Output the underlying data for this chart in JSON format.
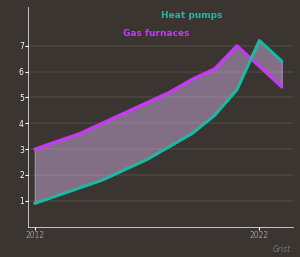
{
  "background_color": "#3a3530",
  "plot_bg_color": "#3a3530",
  "teal_color": "#1db8a0",
  "purple_color": "#cc33ff",
  "fill_color": "#ddb8ee",
  "fill_alpha": 0.45,
  "line_width": 2.2,
  "heat_pumps_label": "Heat pumps",
  "gas_furnaces_label": "Gas furnaces",
  "label_color_teal": "#1db8a0",
  "label_color_purple": "#cc33ff",
  "grist_label": "Grist",
  "grid_color": "#ffffff",
  "tick_color": "#ffffff",
  "axis_label_color": "#999999",
  "years": [
    2012,
    2013,
    2014,
    2015,
    2016,
    2017,
    2018,
    2019,
    2020,
    2021,
    2022,
    2023
  ],
  "heat_pumps": [
    0.9,
    1.2,
    1.5,
    1.8,
    2.2,
    2.6,
    3.1,
    3.6,
    4.3,
    5.3,
    7.2,
    6.4
  ],
  "gas_furnaces": [
    3.0,
    3.3,
    3.6,
    4.0,
    4.4,
    4.8,
    5.2,
    5.7,
    6.1,
    7.0,
    6.2,
    5.4
  ],
  "ylim": [
    0,
    8.5
  ],
  "ytick_positions": [
    1,
    2,
    3,
    4,
    5,
    6,
    7
  ],
  "ytick_labels": [
    "1",
    "2",
    "3",
    "4",
    "5",
    "6",
    "7"
  ],
  "xlim_start": 2012,
  "xlim_end": 2023.5,
  "xtick_positions": [
    2012,
    2022
  ],
  "xtick_labels": [
    "2012",
    "2022"
  ]
}
